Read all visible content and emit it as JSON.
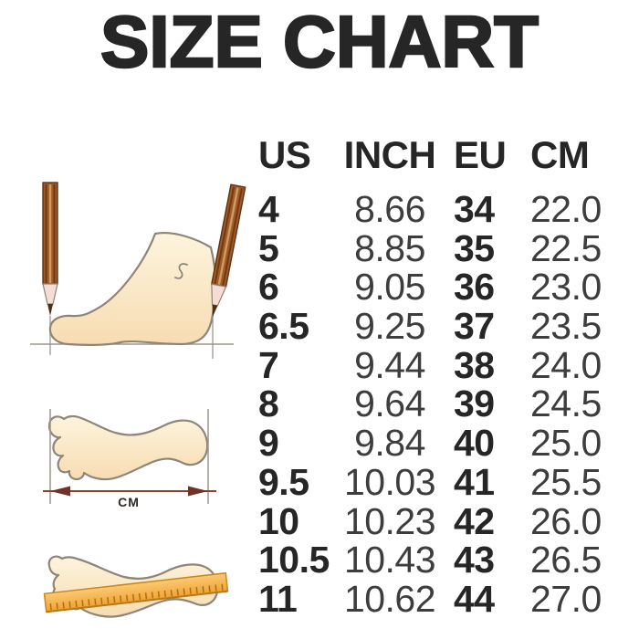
{
  "page": {
    "title": "SIZE CHART"
  },
  "chart_data": {
    "type": "table",
    "title": "SIZE CHART",
    "columns": [
      "US",
      "INCH",
      "EU",
      "CM"
    ],
    "rows": [
      [
        "4",
        "8.66",
        "34",
        "22.0"
      ],
      [
        "5",
        "8.85",
        "35",
        "22.5"
      ],
      [
        "6",
        "9.05",
        "36",
        "23.0"
      ],
      [
        "6.5",
        "9.25",
        "37",
        "23.5"
      ],
      [
        "7",
        "9.44",
        "38",
        "24.0"
      ],
      [
        "8",
        "9.64",
        "39",
        "24.5"
      ],
      [
        "9",
        "9.84",
        "40",
        "25.0"
      ],
      [
        "9.5",
        "10.03",
        "41",
        "25.5"
      ],
      [
        "10",
        "10.23",
        "42",
        "26.0"
      ],
      [
        "10.5",
        "10.43",
        "43",
        "26.5"
      ],
      [
        "11",
        "10.62",
        "44",
        "27.0"
      ]
    ]
  },
  "illustration": {
    "measure_label": "CM",
    "items": [
      "foot-side-pencil-measurement",
      "footprint-length-arrow",
      "footprint-with-ruler"
    ]
  },
  "colors": {
    "title_text": "#262626",
    "bold_text": "#262626",
    "light_text": "#3d3d3d",
    "foot_fill_top": "#fdf3dc",
    "foot_fill_bottom": "#f7dcb2",
    "outline_gray": "#8d8579",
    "pencil_body": "#a05a28",
    "pencil_stripe": "#6f3a12",
    "pencil_lead": "#4f2c12",
    "arrow_brown": "#6e3326",
    "ruler_orange": "#f0a232",
    "background": "#ffffff"
  }
}
